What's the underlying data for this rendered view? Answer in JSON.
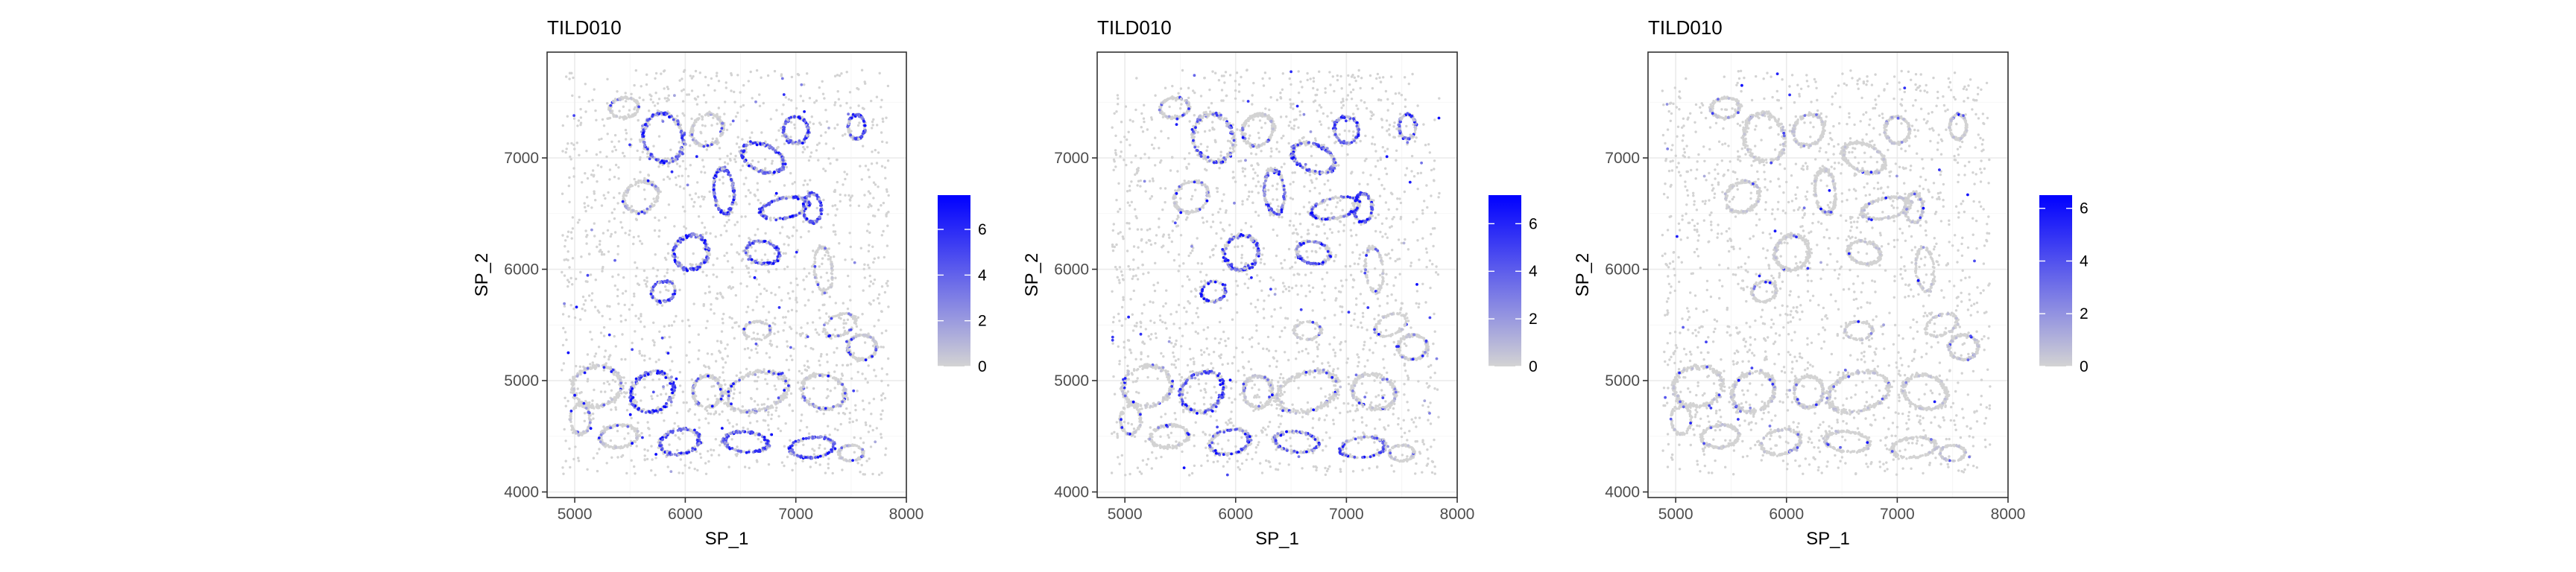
{
  "chart_data": [
    {
      "type": "scatter",
      "title": "TILD010",
      "xlabel": "SP_1",
      "ylabel": "SP_2",
      "xlim": [
        4750,
        8000
      ],
      "ylim": [
        3950,
        7950
      ],
      "xticks": [
        5000,
        6000,
        7000,
        8000
      ],
      "yticks": [
        4000,
        5000,
        6000,
        7000
      ],
      "grid": true,
      "legend": {
        "placement": "right",
        "type": "colorbar",
        "range": [
          0,
          7.5
        ],
        "ticks": [
          0,
          2,
          4,
          6
        ],
        "colors": [
          "#d3d3d3",
          "#0000ff"
        ]
      },
      "expression_profile": "medium",
      "seed": 11
    },
    {
      "type": "scatter",
      "title": "TILD010",
      "xlabel": "SP_1",
      "ylabel": "SP_2",
      "xlim": [
        4750,
        8000
      ],
      "ylim": [
        3950,
        7950
      ],
      "xticks": [
        5000,
        6000,
        7000,
        8000
      ],
      "yticks": [
        4000,
        5000,
        6000,
        7000
      ],
      "grid": true,
      "legend": {
        "placement": "right",
        "type": "colorbar",
        "range": [
          0,
          7.2
        ],
        "ticks": [
          0,
          2,
          4,
          6
        ],
        "colors": [
          "#d3d3d3",
          "#0000ff"
        ]
      },
      "expression_profile": "sparse",
      "seed": 23
    },
    {
      "type": "scatter",
      "title": "TILD010",
      "xlabel": "SP_1",
      "ylabel": "SP_2",
      "xlim": [
        4750,
        8000
      ],
      "ylim": [
        3950,
        7950
      ],
      "xticks": [
        5000,
        6000,
        7000,
        8000
      ],
      "yticks": [
        4000,
        5000,
        6000,
        7000
      ],
      "grid": true,
      "legend": {
        "placement": "right",
        "type": "colorbar",
        "range": [
          0,
          6.5
        ],
        "ticks": [
          0,
          2,
          4,
          6
        ],
        "colors": [
          "#d3d3d3",
          "#0000ff"
        ]
      },
      "expression_profile": "low",
      "seed": 37
    }
  ]
}
